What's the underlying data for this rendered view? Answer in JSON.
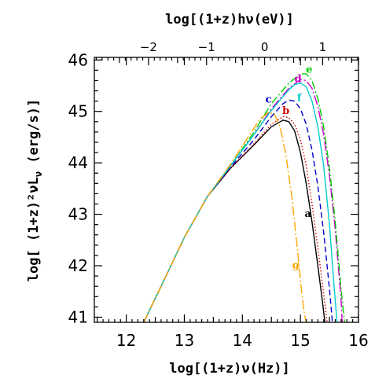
{
  "chart_data": {
    "type": "line",
    "xlabel": "log[(1+z)ν(Hz)]",
    "ylabel": "log[ (1+z)²νL",
    "ylabel_sub": "ν",
    "ylabel_unit": " (erg/s)]",
    "top_xlabel": "log[(1+z)hν(eV)]",
    "xlim": [
      11.45,
      16.0
    ],
    "ylim": [
      40.9,
      46.05
    ],
    "x_ticks": [
      "12",
      "13",
      "14",
      "15",
      "16"
    ],
    "y_ticks": [
      "41",
      "42",
      "43",
      "44",
      "45",
      "46"
    ],
    "top_ticks": [
      "−2",
      "−1",
      "0",
      "1"
    ],
    "top_tick_values": [
      -2,
      -1,
      0,
      1
    ],
    "series": [
      {
        "name": "a",
        "color": "#000000",
        "dash": "",
        "x": [
          12.3,
          12.6,
          13.0,
          13.4,
          13.8,
          14.2,
          14.5,
          14.7,
          14.8,
          14.9,
          15.0,
          15.1,
          15.2,
          15.3,
          15.38,
          15.42
        ],
        "y": [
          40.9,
          41.6,
          42.55,
          43.35,
          43.9,
          44.35,
          44.7,
          44.83,
          44.8,
          44.62,
          44.2,
          43.6,
          42.85,
          42.0,
          41.3,
          40.9
        ]
      },
      {
        "name": "b",
        "color": "#cc0000",
        "dash": "1.5,2.5",
        "x": [
          12.3,
          12.6,
          13.0,
          13.4,
          13.8,
          14.2,
          14.5,
          14.7,
          14.8,
          14.9,
          15.0,
          15.1,
          15.2,
          15.3,
          15.4,
          15.46
        ],
        "y": [
          40.9,
          41.6,
          42.55,
          43.35,
          43.9,
          44.37,
          44.75,
          44.9,
          44.88,
          44.75,
          44.45,
          43.95,
          43.2,
          42.35,
          41.45,
          40.9
        ]
      },
      {
        "name": "c",
        "color": "#0000cc",
        "dash": "7,4",
        "x": [
          12.3,
          12.6,
          13.0,
          13.4,
          13.8,
          14.2,
          14.5,
          14.7,
          14.8,
          14.9,
          15.0,
          15.1,
          15.2,
          15.3,
          15.4,
          15.5,
          15.55
        ],
        "y": [
          40.9,
          41.6,
          42.55,
          43.35,
          43.92,
          44.45,
          44.9,
          45.15,
          45.22,
          45.2,
          45.05,
          44.75,
          44.25,
          43.55,
          42.65,
          41.55,
          40.9
        ]
      },
      {
        "name": "d",
        "color": "#cc00cc",
        "dash": "12,3,2,3",
        "x": [
          12.3,
          12.6,
          13.0,
          13.4,
          13.8,
          14.2,
          14.5,
          14.8,
          15.0,
          15.1,
          15.2,
          15.3,
          15.4,
          15.5,
          15.6,
          15.7,
          15.72
        ],
        "y": [
          40.9,
          41.6,
          42.55,
          43.35,
          43.95,
          44.55,
          45.05,
          45.45,
          45.62,
          45.6,
          45.45,
          45.1,
          44.55,
          43.75,
          42.7,
          41.35,
          40.9
        ]
      },
      {
        "name": "e",
        "color": "#00cc00",
        "dash": "10,3,2,3",
        "x": [
          12.3,
          12.6,
          13.0,
          13.4,
          13.8,
          14.2,
          14.5,
          14.8,
          15.0,
          15.1,
          15.2,
          15.3,
          15.4,
          15.5,
          15.6,
          15.7,
          15.76
        ],
        "y": [
          40.9,
          41.6,
          42.55,
          43.35,
          43.95,
          44.6,
          45.15,
          45.55,
          45.73,
          45.73,
          45.6,
          45.25,
          44.7,
          43.9,
          42.85,
          41.55,
          40.9
        ]
      },
      {
        "name": "f",
        "color": "#00cccc",
        "dash": "",
        "x": [
          12.3,
          12.6,
          13.0,
          13.4,
          13.8,
          14.2,
          14.5,
          14.8,
          14.9,
          15.0,
          15.1,
          15.2,
          15.3,
          15.4,
          15.5,
          15.58,
          15.63
        ],
        "y": [
          40.9,
          41.6,
          42.55,
          43.35,
          43.95,
          44.55,
          45.02,
          45.42,
          45.52,
          45.55,
          45.48,
          45.2,
          44.7,
          43.95,
          42.8,
          41.6,
          40.9
        ]
      },
      {
        "name": "g",
        "color": "#ffa500",
        "dash": "12,3,2,3",
        "x": [
          12.3,
          12.6,
          13.0,
          13.4,
          13.8,
          14.1,
          14.3,
          14.45,
          14.55,
          14.65,
          14.75,
          14.85,
          14.95,
          15.02,
          15.07,
          15.1
        ],
        "y": [
          40.9,
          41.6,
          42.55,
          43.35,
          43.98,
          44.5,
          44.85,
          44.98,
          44.95,
          44.7,
          44.15,
          43.35,
          42.3,
          41.5,
          41.05,
          40.9
        ]
      }
    ],
    "labels": [
      {
        "text": "a",
        "x": 15.13,
        "y": 42.95,
        "color": "#000000"
      },
      {
        "text": "b",
        "x": 14.75,
        "y": 44.95,
        "color": "#cc0000"
      },
      {
        "text": "c",
        "x": 14.45,
        "y": 45.17,
        "color": "#0000cc"
      },
      {
        "text": "d",
        "x": 14.96,
        "y": 45.57,
        "color": "#cc00cc"
      },
      {
        "text": "e",
        "x": 15.15,
        "y": 45.75,
        "color": "#00cc00"
      },
      {
        "text": "f",
        "x": 14.98,
        "y": 45.2,
        "color": "#00cccc"
      },
      {
        "text": "g",
        "x": 14.92,
        "y": 41.95,
        "color": "#ffa500"
      }
    ]
  }
}
